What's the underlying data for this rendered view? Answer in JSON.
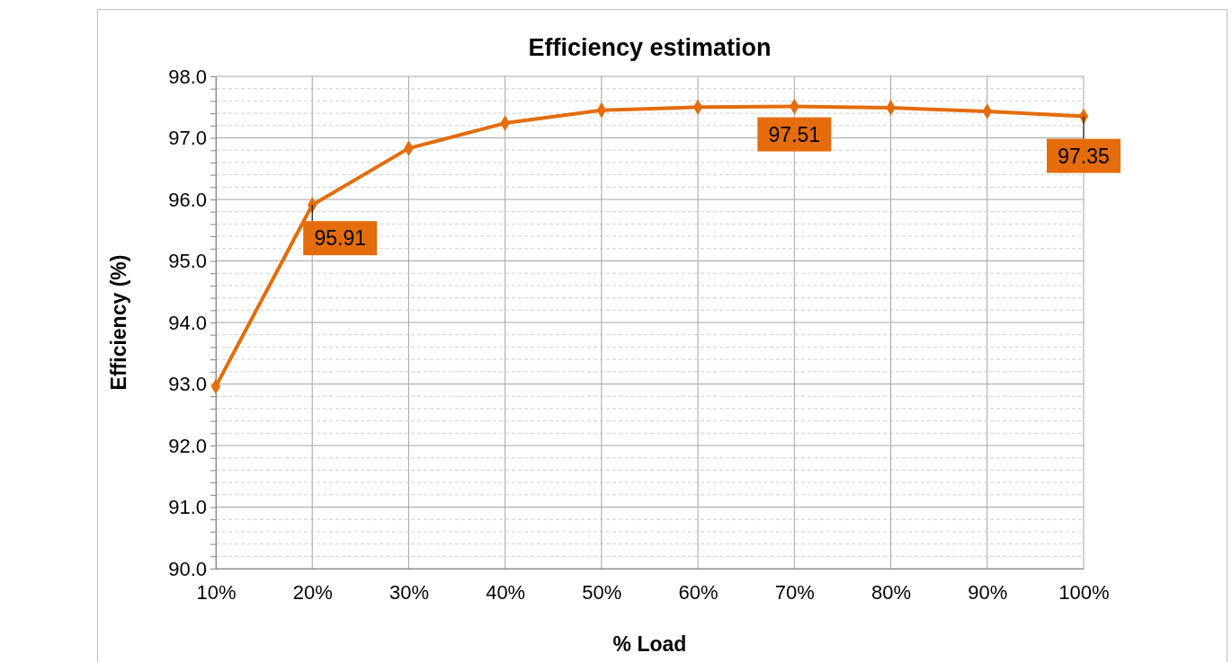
{
  "chart_data": {
    "type": "line",
    "title": "Efficiency estimation",
    "xlabel": "% Load",
    "ylabel": "Efficiency (%)",
    "categories": [
      "10%",
      "20%",
      "30%",
      "40%",
      "50%",
      "60%",
      "70%",
      "80%",
      "90%",
      "100%"
    ],
    "series": [
      {
        "color": "#e46c0a",
        "values": [
          92.96,
          95.91,
          96.83,
          97.24,
          97.45,
          97.5,
          97.51,
          97.49,
          97.43,
          97.35
        ],
        "value_labels": [
          null,
          "95.91",
          null,
          null,
          null,
          null,
          "97.51",
          null,
          null,
          "97.35"
        ]
      }
    ],
    "ylim": [
      90,
      98
    ],
    "yticks": [
      {
        "value": 90,
        "label": "90.0"
      },
      {
        "value": 90.2,
        "label": null
      },
      {
        "value": 90.4,
        "label": null
      },
      {
        "value": 90.6,
        "label": null
      },
      {
        "value": 90.8,
        "label": null
      },
      {
        "value": 91,
        "label": "91.0"
      },
      {
        "value": 91.2,
        "label": null
      },
      {
        "value": 91.4,
        "label": null
      },
      {
        "value": 91.6,
        "label": null
      },
      {
        "value": 91.8,
        "label": null
      },
      {
        "value": 92,
        "label": "92.0"
      },
      {
        "value": 92.2,
        "label": null
      },
      {
        "value": 92.4,
        "label": null
      },
      {
        "value": 92.6,
        "label": null
      },
      {
        "value": 92.8,
        "label": null
      },
      {
        "value": 93,
        "label": "93.0"
      },
      {
        "value": 93.2,
        "label": null
      },
      {
        "value": 93.4,
        "label": null
      },
      {
        "value": 93.6,
        "label": null
      },
      {
        "value": 93.8,
        "label": null
      },
      {
        "value": 94,
        "label": "94.0"
      },
      {
        "value": 94.2,
        "label": null
      },
      {
        "value": 94.4,
        "label": null
      },
      {
        "value": 94.6,
        "label": null
      },
      {
        "value": 94.8,
        "label": null
      },
      {
        "value": 95,
        "label": "95.0"
      },
      {
        "value": 95.2,
        "label": null
      },
      {
        "value": 95.4,
        "label": null
      },
      {
        "value": 95.6,
        "label": null
      },
      {
        "value": 95.8,
        "label": null
      },
      {
        "value": 96,
        "label": "96.0"
      },
      {
        "value": 96.2,
        "label": null
      },
      {
        "value": 96.4,
        "label": null
      },
      {
        "value": 96.6,
        "label": null
      },
      {
        "value": 96.8,
        "label": null
      },
      {
        "value": 97,
        "label": "97.0"
      },
      {
        "value": 97.2,
        "label": null
      },
      {
        "value": 97.4,
        "label": null
      },
      {
        "value": 97.6,
        "label": null
      },
      {
        "value": 97.8,
        "label": null
      },
      {
        "value": 98,
        "label": "98.0"
      }
    ],
    "grid": true,
    "marker": "diamond",
    "line_style": "solid"
  }
}
